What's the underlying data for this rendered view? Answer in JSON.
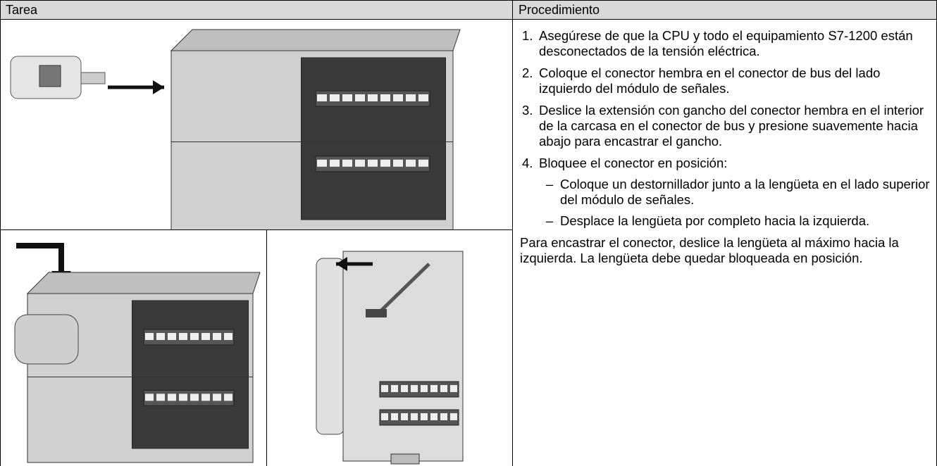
{
  "header": {
    "task": "Tarea",
    "procedure": "Procedimiento"
  },
  "steps": [
    {
      "number": "1.",
      "text": "Asegúrese de que la CPU y todo el equipamiento S7-1200 están desconectados de la tensión eléctrica."
    },
    {
      "number": "2.",
      "text": "Coloque el conector hembra en el conector de bus del lado izquierdo del módulo de señales."
    },
    {
      "number": "3.",
      "text": "Deslice la extensión con gancho del conector hembra en el interior de la carcasa en el conector de bus y presione suavemente hacia abajo para encastrar el gancho."
    },
    {
      "number": "4.",
      "text": "Bloquee el conector en posición:",
      "substeps": [
        {
          "bullet": "–",
          "text": "Coloque un destornillador junto a la lengüeta en el lado superior del módulo de señales."
        },
        {
          "bullet": "–",
          "text": "Desplace la lengüeta por completo hacia la izquierda."
        }
      ]
    }
  ],
  "note": "Para encastrar el conector, deslice la lengüeta al máximo hacia la izquierda. La lengüeta debe quedar bloqueada en posición."
}
